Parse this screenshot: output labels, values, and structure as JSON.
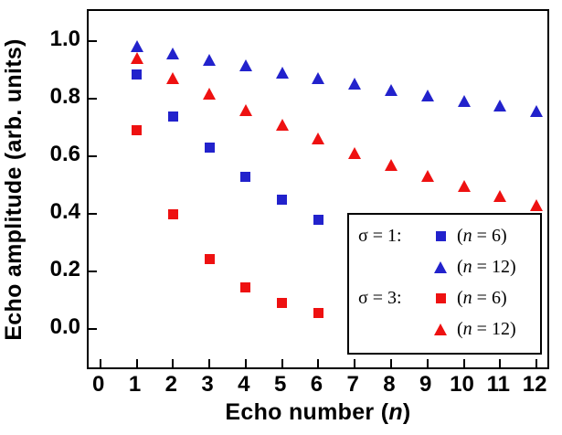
{
  "chart_data": {
    "type": "scatter",
    "title": "",
    "xlabel_parts": {
      "prefix": "Echo number (",
      "var": "n",
      "suffix": ")"
    },
    "ylabel": "Echo amplitude (arb. units)",
    "xlim": [
      -0.32,
      12.4
    ],
    "ylim": [
      -0.145,
      1.105
    ],
    "x_ticks": [
      0,
      1,
      2,
      3,
      4,
      5,
      6,
      7,
      8,
      9,
      10,
      11,
      12
    ],
    "y_ticks": [
      0.0,
      0.2,
      0.4,
      0.6,
      0.8,
      1.0
    ],
    "y_tick_labels": [
      "0.0",
      "0.2",
      "0.4",
      "0.6",
      "0.8",
      "1.0"
    ],
    "grid": false,
    "legend_position": "lower right",
    "series": [
      {
        "name": "σ = 1 (n = 6)",
        "marker": "square",
        "color": "#2222cc",
        "x": [
          1,
          2,
          3,
          4,
          5,
          6
        ],
        "y": [
          0.885,
          0.74,
          0.63,
          0.53,
          0.45,
          0.38
        ]
      },
      {
        "name": "σ = 1 (n = 12)",
        "marker": "triangle",
        "color": "#2222cc",
        "x": [
          1,
          2,
          3,
          4,
          5,
          6,
          7,
          8,
          9,
          10,
          11,
          12
        ],
        "y": [
          0.98,
          0.955,
          0.935,
          0.915,
          0.89,
          0.87,
          0.85,
          0.83,
          0.81,
          0.79,
          0.775,
          0.755
        ]
      },
      {
        "name": "σ = 3 (n = 6)",
        "marker": "square",
        "color": "#ee1111",
        "x": [
          1,
          2,
          3,
          4,
          5,
          6
        ],
        "y": [
          0.69,
          0.4,
          0.245,
          0.145,
          0.09,
          0.055
        ]
      },
      {
        "name": "σ = 3 (n = 12)",
        "marker": "triangle",
        "color": "#ee1111",
        "x": [
          1,
          2,
          3,
          4,
          5,
          6,
          7,
          8,
          9,
          10,
          11,
          12
        ],
        "y": [
          0.94,
          0.87,
          0.815,
          0.76,
          0.71,
          0.66,
          0.61,
          0.57,
          0.53,
          0.495,
          0.46,
          0.43
        ]
      }
    ]
  },
  "legend": {
    "rows": [
      {
        "group": "σ = 1:",
        "series": 0,
        "entry": {
          "open": "(",
          "var": "n",
          "rest": " = 6)"
        }
      },
      {
        "group": "",
        "series": 1,
        "entry": {
          "open": "(",
          "var": "n",
          "rest": " = 12)"
        }
      },
      {
        "group": "σ = 3:",
        "series": 2,
        "entry": {
          "open": "(",
          "var": "n",
          "rest": " = 6)"
        }
      },
      {
        "group": "",
        "series": 3,
        "entry": {
          "open": "(",
          "var": "n",
          "rest": " = 12)"
        }
      }
    ]
  }
}
